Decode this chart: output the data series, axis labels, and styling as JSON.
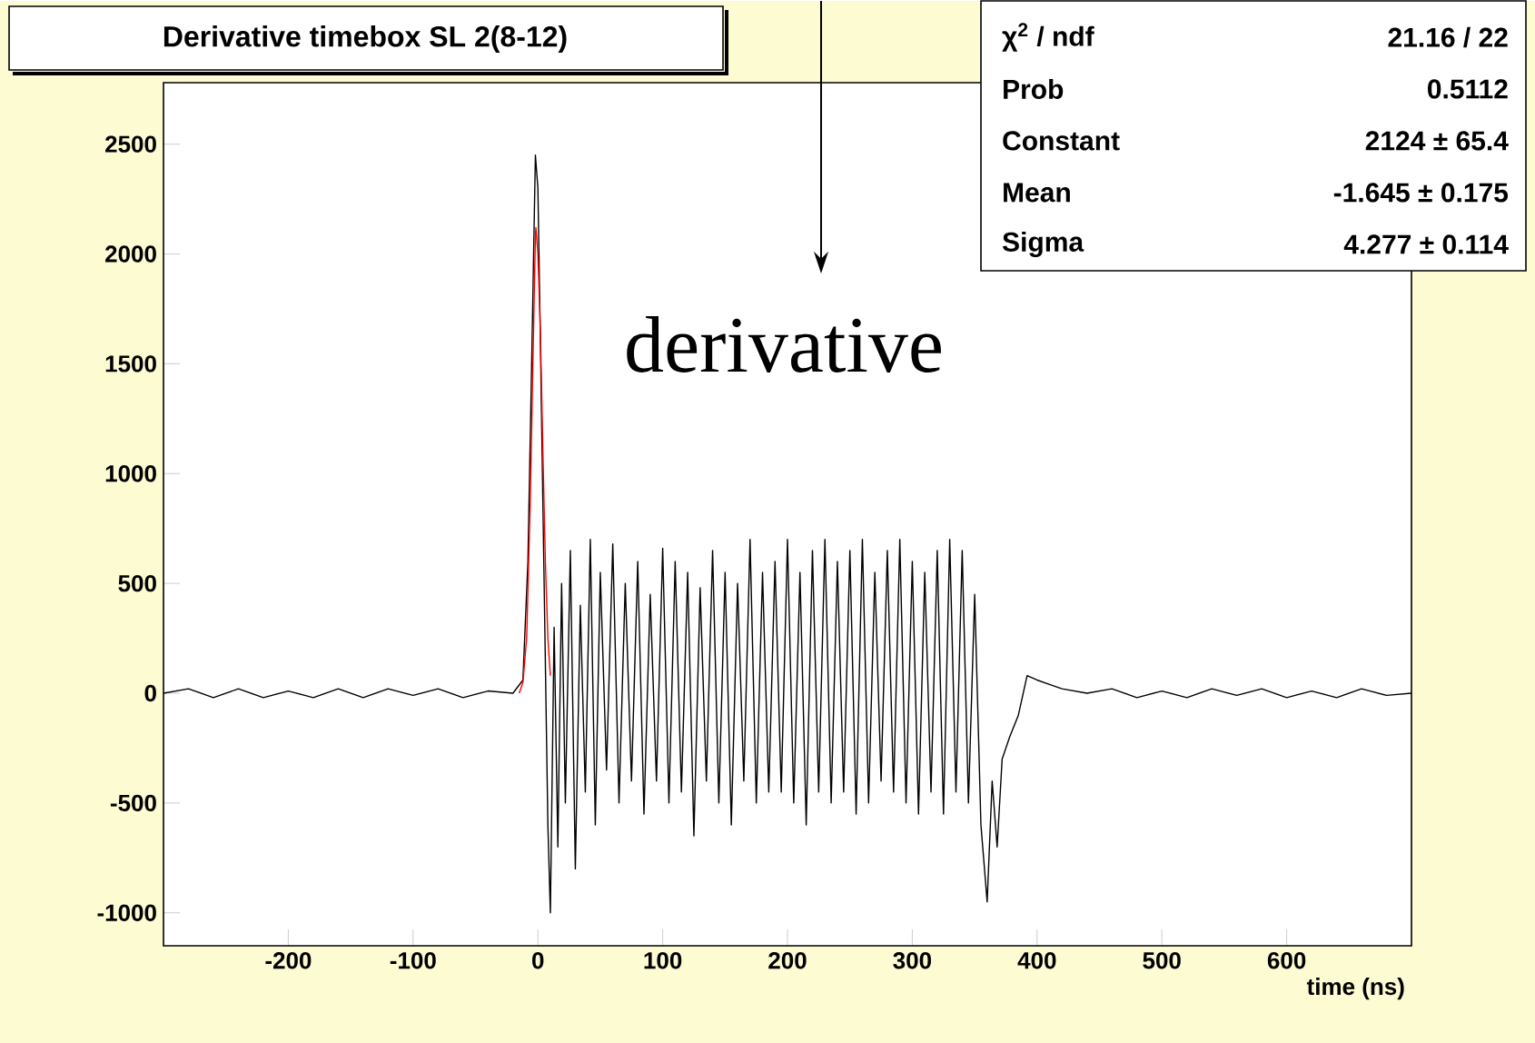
{
  "chart_data": {
    "type": "line",
    "title": "Derivative timebox SL 2(8-12)",
    "xlabel": "time (ns)",
    "xlim": [
      -300,
      700
    ],
    "ylim": [
      -1150,
      2780
    ],
    "xticks": [
      -200,
      -100,
      0,
      100,
      200,
      300,
      400,
      500,
      600
    ],
    "yticks": [
      -1000,
      -500,
      0,
      500,
      1000,
      1500,
      2000,
      2500
    ],
    "marker": "none",
    "line_style": "solid",
    "grid": false,
    "annotations": [
      "derivative",
      "χ$^{2}$ / ndf",
      "21.16 / 22",
      "Prob",
      "0.5112",
      "Constant",
      "2124 ± 65.4",
      "Mean",
      "-1.645 ± 0.175",
      "Sigma",
      "4.277 ± 0.114"
    ],
    "series": [
      {
        "color": "#000000",
        "x": [
          -300,
          -280,
          -260,
          -240,
          -220,
          -200,
          -180,
          -160,
          -140,
          -120,
          -100,
          -80,
          -60,
          -40,
          -20,
          -12,
          -8,
          -5,
          -2,
          0,
          2,
          5,
          8,
          10,
          13,
          16,
          19,
          22,
          26,
          30,
          34,
          38,
          42,
          46,
          50,
          55,
          60,
          65,
          70,
          75,
          80,
          85,
          90,
          95,
          100,
          105,
          110,
          115,
          120,
          125,
          130,
          135,
          140,
          145,
          150,
          155,
          160,
          165,
          170,
          175,
          180,
          185,
          190,
          195,
          200,
          205,
          210,
          215,
          220,
          225,
          230,
          235,
          240,
          245,
          250,
          255,
          260,
          265,
          270,
          275,
          280,
          285,
          290,
          295,
          300,
          305,
          310,
          315,
          320,
          325,
          330,
          335,
          340,
          345,
          350,
          355,
          360,
          364,
          368,
          372,
          378,
          385,
          392,
          400,
          410,
          420,
          440,
          460,
          480,
          500,
          520,
          540,
          560,
          580,
          600,
          620,
          640,
          660,
          680,
          700
        ],
        "values": [
          0,
          20,
          -20,
          20,
          -20,
          10,
          -20,
          20,
          -20,
          20,
          -10,
          20,
          -20,
          10,
          0,
          60,
          600,
          1500,
          2450,
          2300,
          1600,
          500,
          -600,
          -1000,
          300,
          -700,
          500,
          -500,
          650,
          -800,
          400,
          -450,
          700,
          -600,
          550,
          -350,
          680,
          -500,
          500,
          -400,
          600,
          -550,
          450,
          -400,
          660,
          -500,
          600,
          -450,
          550,
          -650,
          480,
          -400,
          650,
          -500,
          550,
          -600,
          500,
          -400,
          700,
          -500,
          550,
          -450,
          600,
          -450,
          700,
          -500,
          550,
          -600,
          650,
          -450,
          700,
          -500,
          600,
          -450,
          650,
          -550,
          700,
          -500,
          550,
          -400,
          650,
          -450,
          700,
          -500,
          600,
          -550,
          550,
          -450,
          650,
          -550,
          700,
          -450,
          650,
          -500,
          450,
          -600,
          -950,
          -400,
          -700,
          -300,
          -200,
          -100,
          80,
          60,
          40,
          20,
          0,
          20,
          -20,
          10,
          -20,
          20,
          -10,
          20,
          -20,
          10,
          -20,
          20,
          -10,
          0
        ]
      },
      {
        "color": "#ff0000",
        "x": [
          -15,
          -12,
          -9,
          -6,
          -4,
          -2,
          -1.6,
          0,
          2,
          4,
          6,
          8,
          10
        ],
        "values": [
          0,
          50,
          250,
          900,
          1500,
          2080,
          2120,
          2000,
          1650,
          1100,
          600,
          250,
          80
        ]
      }
    ]
  }
}
